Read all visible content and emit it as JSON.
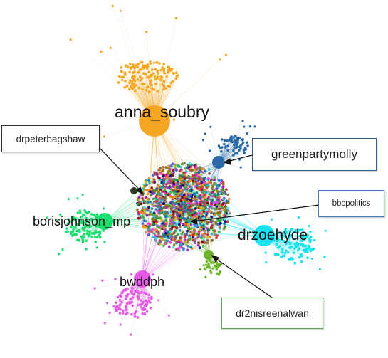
{
  "graph": {
    "hubs": [
      {
        "id": "anna_soubry",
        "label": "anna_soubry",
        "color": "#f5a623"
      },
      {
        "id": "greenpartymolly",
        "label": "",
        "color": "#2a6aa8"
      },
      {
        "id": "borisjohnson_mp",
        "label": "borisjohnson_mp",
        "color": "#18e070"
      },
      {
        "id": "drzoehyde",
        "label": "drzoehyde",
        "color": "#17e3ef"
      },
      {
        "id": "bwddph",
        "label": "bwddph",
        "color": "#e55ae5"
      },
      {
        "id": "dr2nisreenalwan",
        "label": "",
        "color": "#6fb42c"
      }
    ],
    "callouts": [
      {
        "id": "drpeterbagshaw",
        "text": "drpeterbagshaw",
        "border": "#333333"
      },
      {
        "id": "greenpartymolly",
        "text": "greenpartymolly",
        "border": "#2f5f9a"
      },
      {
        "id": "bbcpolitics",
        "text": "bbcpolitics",
        "border": "#4a78c0"
      },
      {
        "id": "dr2nisreenalwan",
        "text": "dr2nisreenalwan",
        "border": "#55aa55"
      }
    ],
    "core_palette": [
      "#e6194b",
      "#3cb44b",
      "#4363d8",
      "#f58231",
      "#911eb4",
      "#46f0f0",
      "#f032e6",
      "#bcbd22",
      "#008080",
      "#9a6324",
      "#800000",
      "#808000",
      "#000075",
      "#2ca02c",
      "#d62728",
      "#8c564b",
      "#1f77b4",
      "#ff7f0e",
      "#17becf",
      "#7f7f7f"
    ]
  }
}
